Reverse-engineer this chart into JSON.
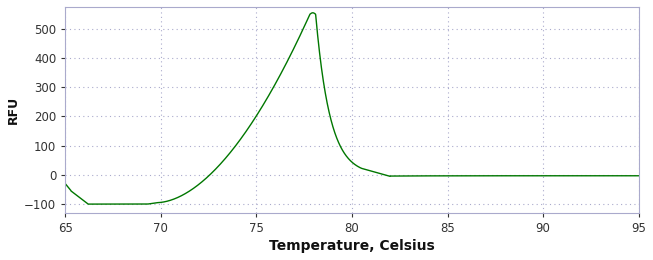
{
  "title": "",
  "xlabel": "Temperature, Celsius",
  "ylabel": "RFU",
  "xlim": [
    65,
    95
  ],
  "ylim": [
    -130,
    575
  ],
  "xticks": [
    65,
    70,
    75,
    80,
    85,
    90,
    95
  ],
  "yticks": [
    -100,
    0,
    100,
    200,
    300,
    400,
    500
  ],
  "line_color": "#007700",
  "background_color": "#ffffff",
  "grid_color": "#aaaacc",
  "spine_color": "#aaaacc",
  "xlabel_fontsize": 10,
  "ylabel_fontsize": 9,
  "tick_fontsize": 8.5,
  "xlabel_color": "#111111",
  "ylabel_color": "#111111",
  "tick_color": "#333333"
}
